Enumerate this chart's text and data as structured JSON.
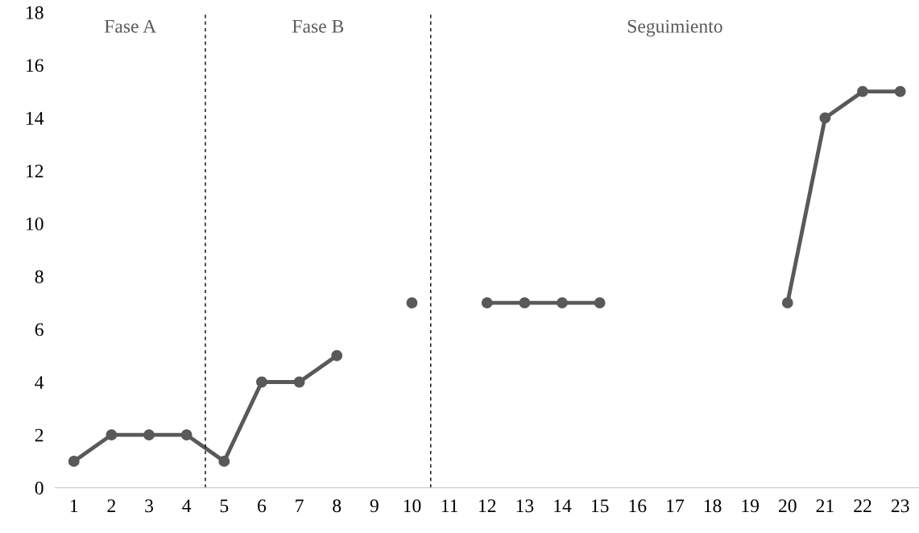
{
  "chart_data": {
    "type": "line",
    "x": [
      1,
      2,
      3,
      4,
      5,
      6,
      7,
      8,
      9,
      10,
      11,
      12,
      13,
      14,
      15,
      16,
      17,
      18,
      19,
      20,
      21,
      22,
      23
    ],
    "series": [
      {
        "color": "#595959",
        "values": [
          1,
          2,
          2,
          2,
          1,
          4,
          4,
          5,
          null,
          7,
          null,
          7,
          7,
          7,
          7,
          null,
          null,
          null,
          null,
          7,
          14,
          15,
          15
        ]
      }
    ],
    "xlim": [
      0.5,
      23.5
    ],
    "xticks": [
      1,
      2,
      3,
      4,
      5,
      6,
      7,
      8,
      9,
      10,
      11,
      12,
      13,
      14,
      15,
      16,
      17,
      18,
      19,
      20,
      21,
      22,
      23
    ],
    "ylim": [
      0,
      18
    ],
    "yticks": [
      0,
      2,
      4,
      6,
      8,
      10,
      12,
      14,
      16,
      18
    ],
    "marker": "circle",
    "line_style": "solid",
    "grid": false,
    "ref_lines": [
      {
        "axis": "x",
        "value": 4.5,
        "color": "#000000",
        "line_style": "dashed"
      },
      {
        "axis": "x",
        "value": 10.5,
        "color": "#000000",
        "line_style": "dashed"
      }
    ],
    "annotations": [
      "Fase A",
      "Fase B",
      "Seguimiento"
    ]
  }
}
